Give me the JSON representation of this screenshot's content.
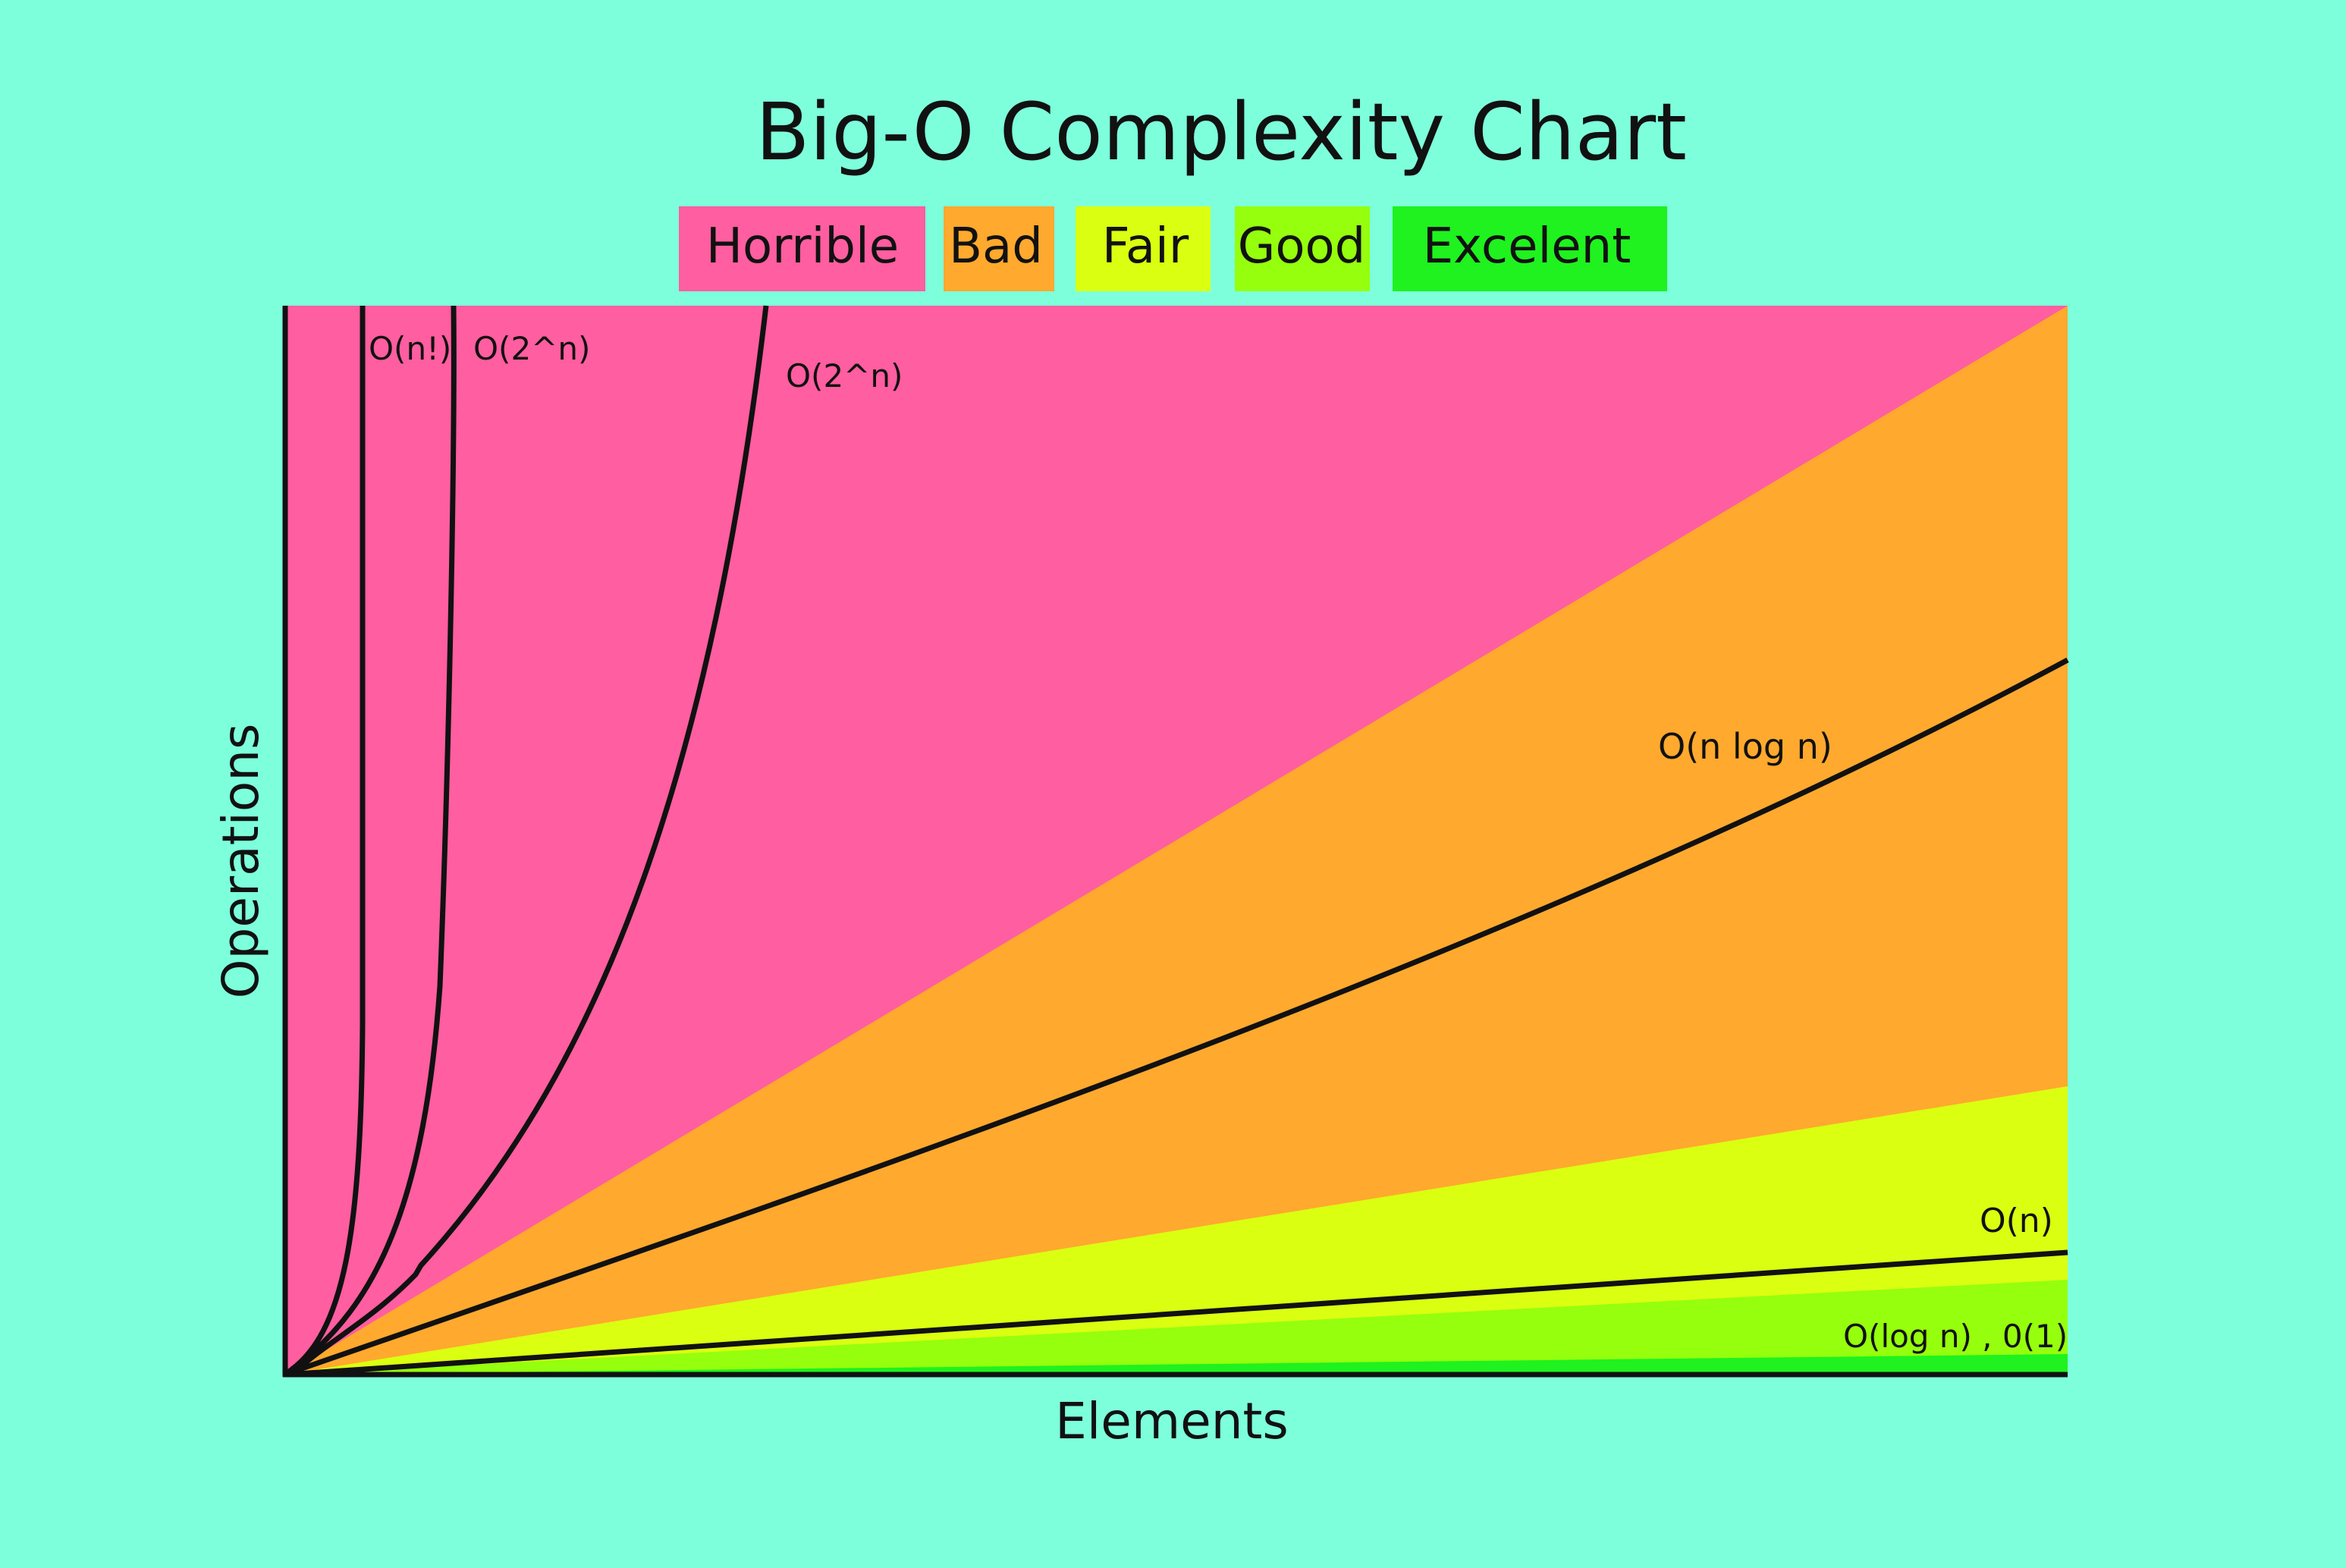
{
  "chart_data": {
    "type": "area",
    "title": "Big-O Complexity Chart",
    "xlabel": "Elements",
    "ylabel": "Operations",
    "legend_position": "top-center",
    "legend": [
      {
        "label": "Horrible",
        "color": "#ff5ea0"
      },
      {
        "label": "Bad",
        "color": "#ffa92e"
      },
      {
        "label": "Fair",
        "color": "#dbff11"
      },
      {
        "label": "Good",
        "color": "#95ff0d"
      },
      {
        "label": "Excelent",
        "color": "#1ff21f"
      }
    ],
    "grid": false,
    "curves": [
      {
        "label": "O(n!)"
      },
      {
        "label": "O(2^n)"
      },
      {
        "label": "O(2^n)"
      },
      {
        "label": "O(n log n)"
      },
      {
        "label": "O(n)"
      },
      {
        "label": "O(log n) , 0(1)"
      }
    ]
  }
}
